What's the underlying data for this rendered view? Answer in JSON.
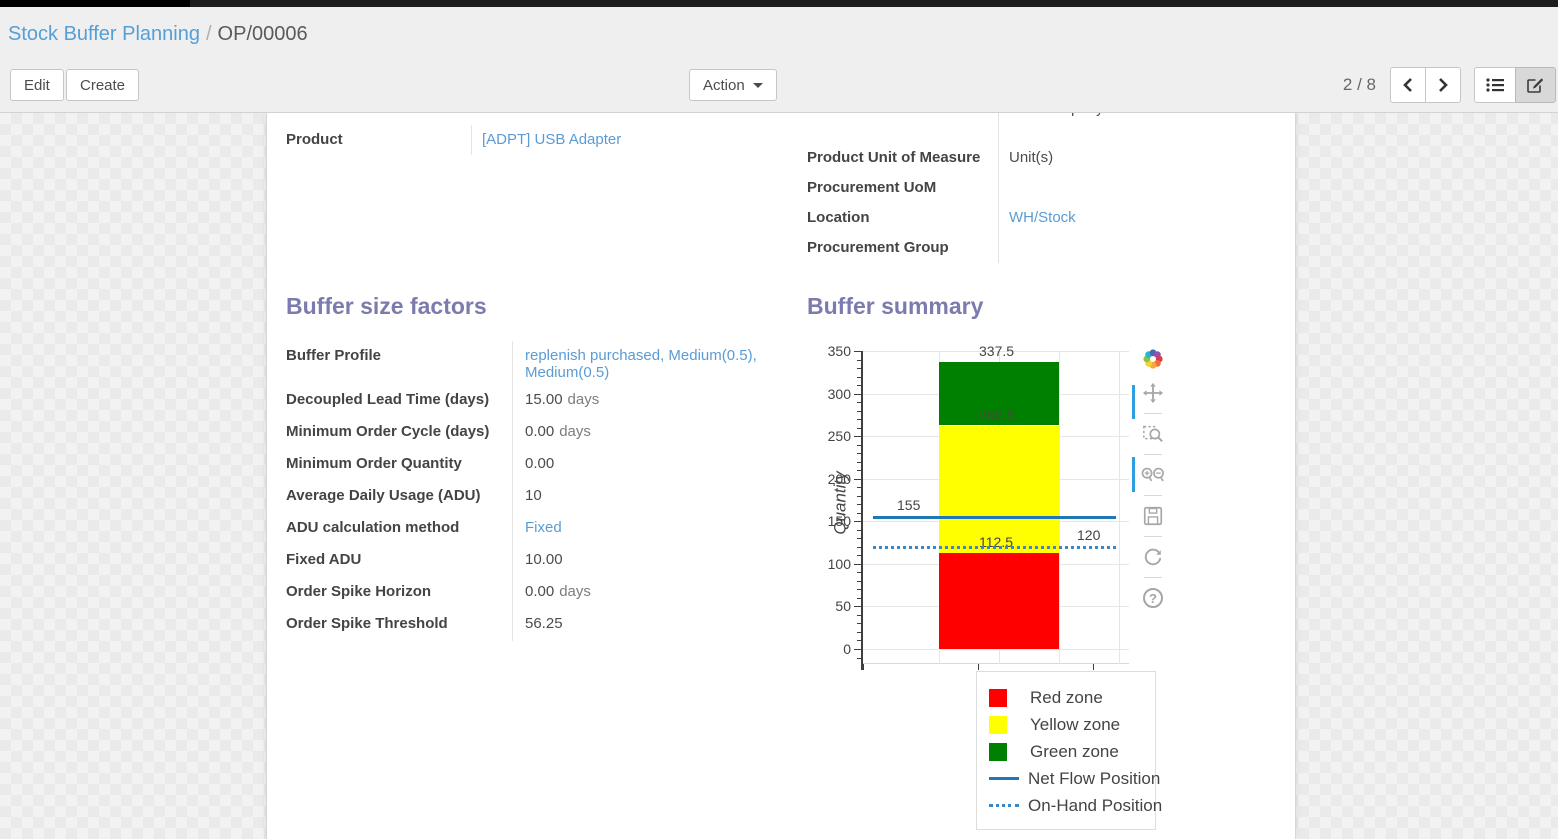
{
  "breadcrumb": {
    "parent": "Stock Buffer Planning",
    "separator": "/",
    "current": "OP/00006"
  },
  "toolbar": {
    "edit_label": "Edit",
    "create_label": "Create",
    "action_label": "Action",
    "pager": "2 / 8"
  },
  "view_switcher": {
    "icons": [
      "list-view-icon",
      "form-view-icon"
    ],
    "active": "form-view-icon"
  },
  "form": {
    "clipped_value": "YourCompany",
    "left_fields": [
      {
        "label": "Product",
        "value": "[ADPT] USB Adapter",
        "link": true
      }
    ],
    "right_fields": [
      {
        "label": "Product Unit of Measure",
        "value": "Unit(s)",
        "link": false
      },
      {
        "label": "Procurement UoM",
        "value": "",
        "link": false
      },
      {
        "label": "Location",
        "value": "WH/Stock",
        "link": true
      },
      {
        "label": "Procurement Group",
        "value": "",
        "link": false
      }
    ],
    "factors": {
      "title": "Buffer size factors",
      "fields": [
        {
          "label": "Buffer Profile",
          "value": "replenish purchased, Medium(0.5), Medium(0.5)",
          "link": true
        },
        {
          "label": "Decoupled Lead Time (days)",
          "value": "15.00",
          "suffix": "days"
        },
        {
          "label": "Minimum Order Cycle (days)",
          "value": "0.00",
          "suffix": "days"
        },
        {
          "label": "Minimum Order Quantity",
          "value": "0.00"
        },
        {
          "label": "Average Daily Usage (ADU)",
          "value": "10"
        },
        {
          "label": "ADU calculation method",
          "value": "Fixed",
          "link": true
        },
        {
          "label": "Fixed ADU",
          "value": "10.00"
        },
        {
          "label": "Order Spike Horizon",
          "value": "0.00",
          "suffix": "days"
        },
        {
          "label": "Order Spike Threshold",
          "value": "56.25"
        }
      ]
    },
    "summary_title": "Buffer summary"
  },
  "chart_data": {
    "type": "bar",
    "title": "Buffer summary",
    "xlabel": "",
    "ylabel": "Quantity",
    "ylim": [
      0,
      350
    ],
    "y_major_ticks": [
      0,
      50,
      100,
      150,
      200,
      250,
      300,
      350
    ],
    "y_minor_step": 10,
    "grid": true,
    "zones": [
      {
        "name": "Red zone",
        "from": 0,
        "to": 112.5,
        "color": "#ff0000",
        "top_label": "112.5"
      },
      {
        "name": "Yellow zone",
        "from": 112.5,
        "to": 262.5,
        "color": "#ffff00"
      },
      {
        "name": "Green zone",
        "from": 262.5,
        "to": 337.5,
        "color": "#008000",
        "top_label": "337.5",
        "bottom_label": "262.5"
      }
    ],
    "lines": [
      {
        "name": "Net Flow Position",
        "value": 155,
        "style": "solid",
        "color": "#1f77b4",
        "label": "155",
        "label_side": "left"
      },
      {
        "name": "On-Hand Position",
        "value": 120,
        "style": "dotted",
        "color": "#3a87c8",
        "label": "120",
        "label_side": "right"
      }
    ],
    "legend": [
      {
        "label": "Red zone",
        "symbol": "square",
        "color": "#ff0000"
      },
      {
        "label": "Yellow zone",
        "symbol": "square",
        "color": "#ffff00"
      },
      {
        "label": "Green zone",
        "symbol": "square",
        "color": "#008000"
      },
      {
        "label": "Net Flow Position",
        "symbol": "line",
        "color": "#1f77b4"
      },
      {
        "label": "On-Hand Position",
        "symbol": "dotted",
        "color": "#3a87c8"
      }
    ],
    "legend_position": "bottom-right"
  },
  "modebar": {
    "icons": [
      "plotly-logo-icon",
      "pan-icon",
      "box-zoom-icon",
      "zoom-in-out-icon",
      "save-icon",
      "reset-axes-icon",
      "help-icon"
    ]
  },
  "colors": {
    "accent_link": "#5b9bd5",
    "breadcrumb_link": "#549fd7",
    "section_title": "#7c7bad",
    "net_flow": "#1f77b4",
    "red_zone": "#ff0000",
    "yellow_zone": "#ffff00",
    "green_zone": "#008000"
  }
}
